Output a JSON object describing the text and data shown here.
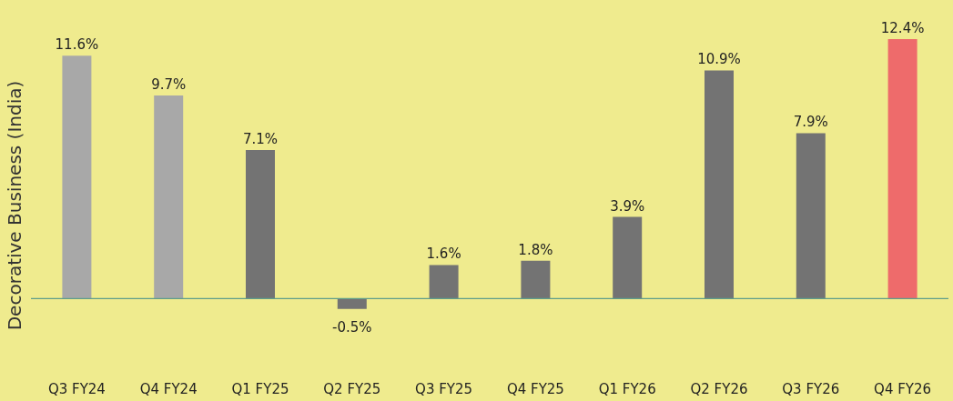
{
  "chart_data": {
    "type": "bar",
    "ylabel": "Decorative Business (India)",
    "categories": [
      "Q3 FY24",
      "Q4 FY24",
      "Q1 FY25",
      "Q2 FY25",
      "Q3 FY25",
      "Q4 FY25",
      "Q1 FY26",
      "Q2 FY26",
      "Q3 FY26",
      "Q4 FY26"
    ],
    "values": [
      11.6,
      9.7,
      7.1,
      -0.5,
      1.6,
      1.8,
      3.9,
      10.9,
      7.9,
      12.4
    ],
    "colors": [
      "#a8a8a8",
      "#a8a8a8",
      "#737373",
      "#737373",
      "#737373",
      "#737373",
      "#737373",
      "#737373",
      "#737373",
      "#ee6b6b"
    ],
    "ref_lines": [
      {
        "axis": "y",
        "value": 0,
        "color": "#5f9e8a"
      }
    ],
    "value_labels": [
      "11.6%",
      "9.7%",
      "7.1%",
      "-0.5%",
      "1.6%",
      "1.8%",
      "3.9%",
      "10.9%",
      "7.9%",
      "12.4%"
    ]
  }
}
